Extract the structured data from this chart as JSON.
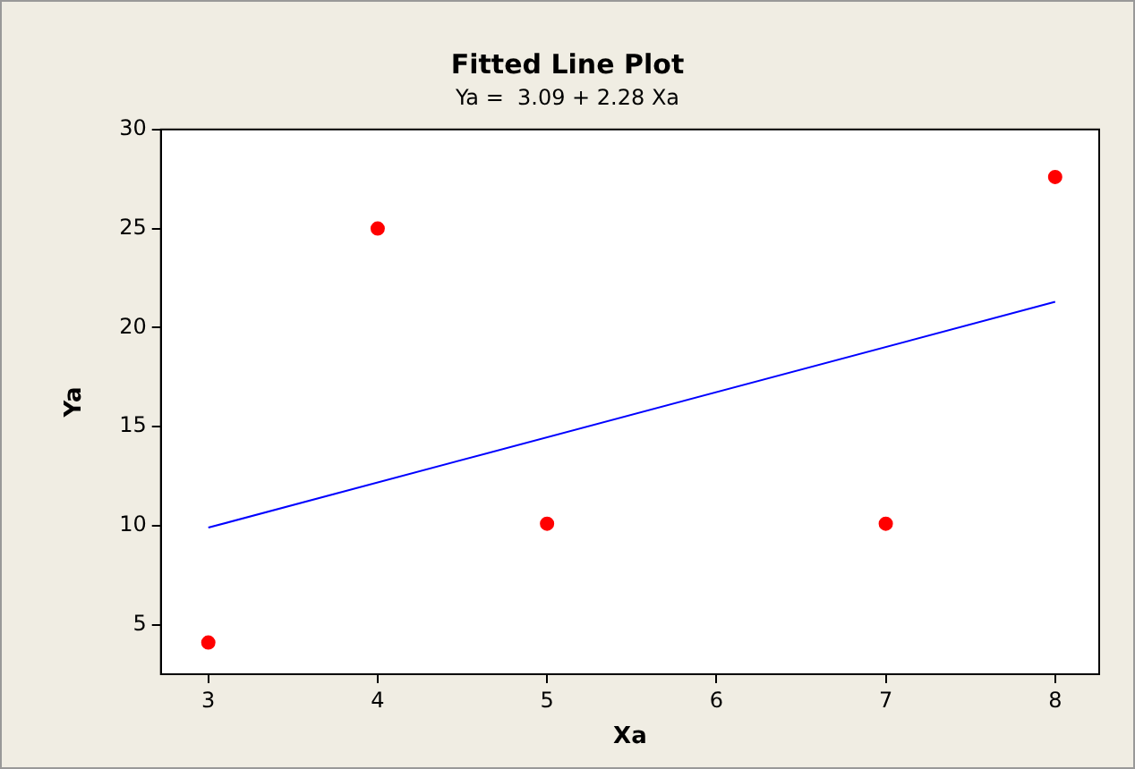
{
  "chart_data": {
    "type": "scatter",
    "title": "Fitted Line Plot",
    "subtitle": "Ya =  3.09 + 2.28 Xa",
    "xlabel": "Xa",
    "ylabel": "Ya",
    "xlim": [
      2.72,
      8.26
    ],
    "xticks": [
      3,
      4,
      5,
      6,
      7,
      8
    ],
    "ylim": [
      2.5,
      30
    ],
    "yticks": [
      5,
      10,
      15,
      20,
      25,
      30
    ],
    "grid": false,
    "legend": false,
    "marker": "circle",
    "series": [
      {
        "type": "scatter",
        "color": "#ff0000",
        "x": [
          3,
          4,
          5,
          7,
          8
        ],
        "values": [
          4.1,
          25,
          10.1,
          10.1,
          27.6
        ]
      },
      {
        "type": "line",
        "color": "#0000ff",
        "x": [
          3,
          8
        ],
        "values": [
          9.9,
          21.3
        ],
        "marker": "none"
      }
    ]
  }
}
